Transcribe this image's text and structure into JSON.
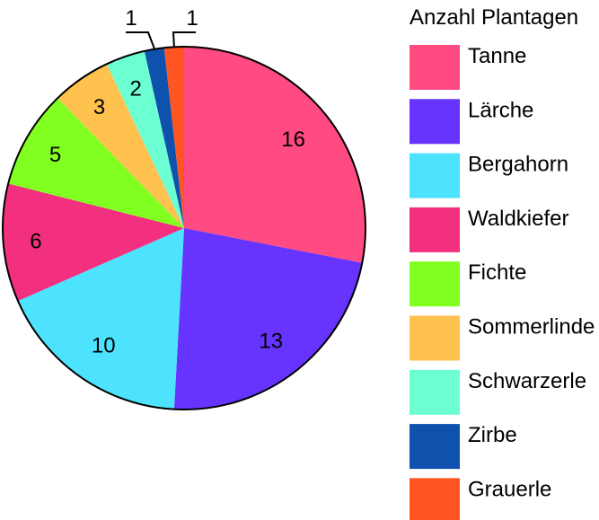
{
  "chart_data": {
    "type": "pie",
    "legend_title": "Anzahl Plantagen",
    "legend_position": "right",
    "start": "top",
    "direction": "clockwise",
    "slices": [
      {
        "label": "Tanne",
        "value": 16,
        "color": "#FF4A82"
      },
      {
        "label": "Lärche",
        "value": 13,
        "color": "#6633FF"
      },
      {
        "label": "Bergahorn",
        "value": 10,
        "color": "#4DE3FF"
      },
      {
        "label": "Waldkiefer",
        "value": 6,
        "color": "#F2307F"
      },
      {
        "label": "Fichte",
        "value": 5,
        "color": "#80FF20"
      },
      {
        "label": "Sommerlinde",
        "value": 3,
        "color": "#FFC24F"
      },
      {
        "label": "Schwarzerle",
        "value": 2,
        "color": "#6CFFD2"
      },
      {
        "label": "Zirbe",
        "value": 1,
        "color": "#0F52AD"
      },
      {
        "label": "Grauerle",
        "value": 1,
        "color": "#FF5522"
      }
    ]
  }
}
